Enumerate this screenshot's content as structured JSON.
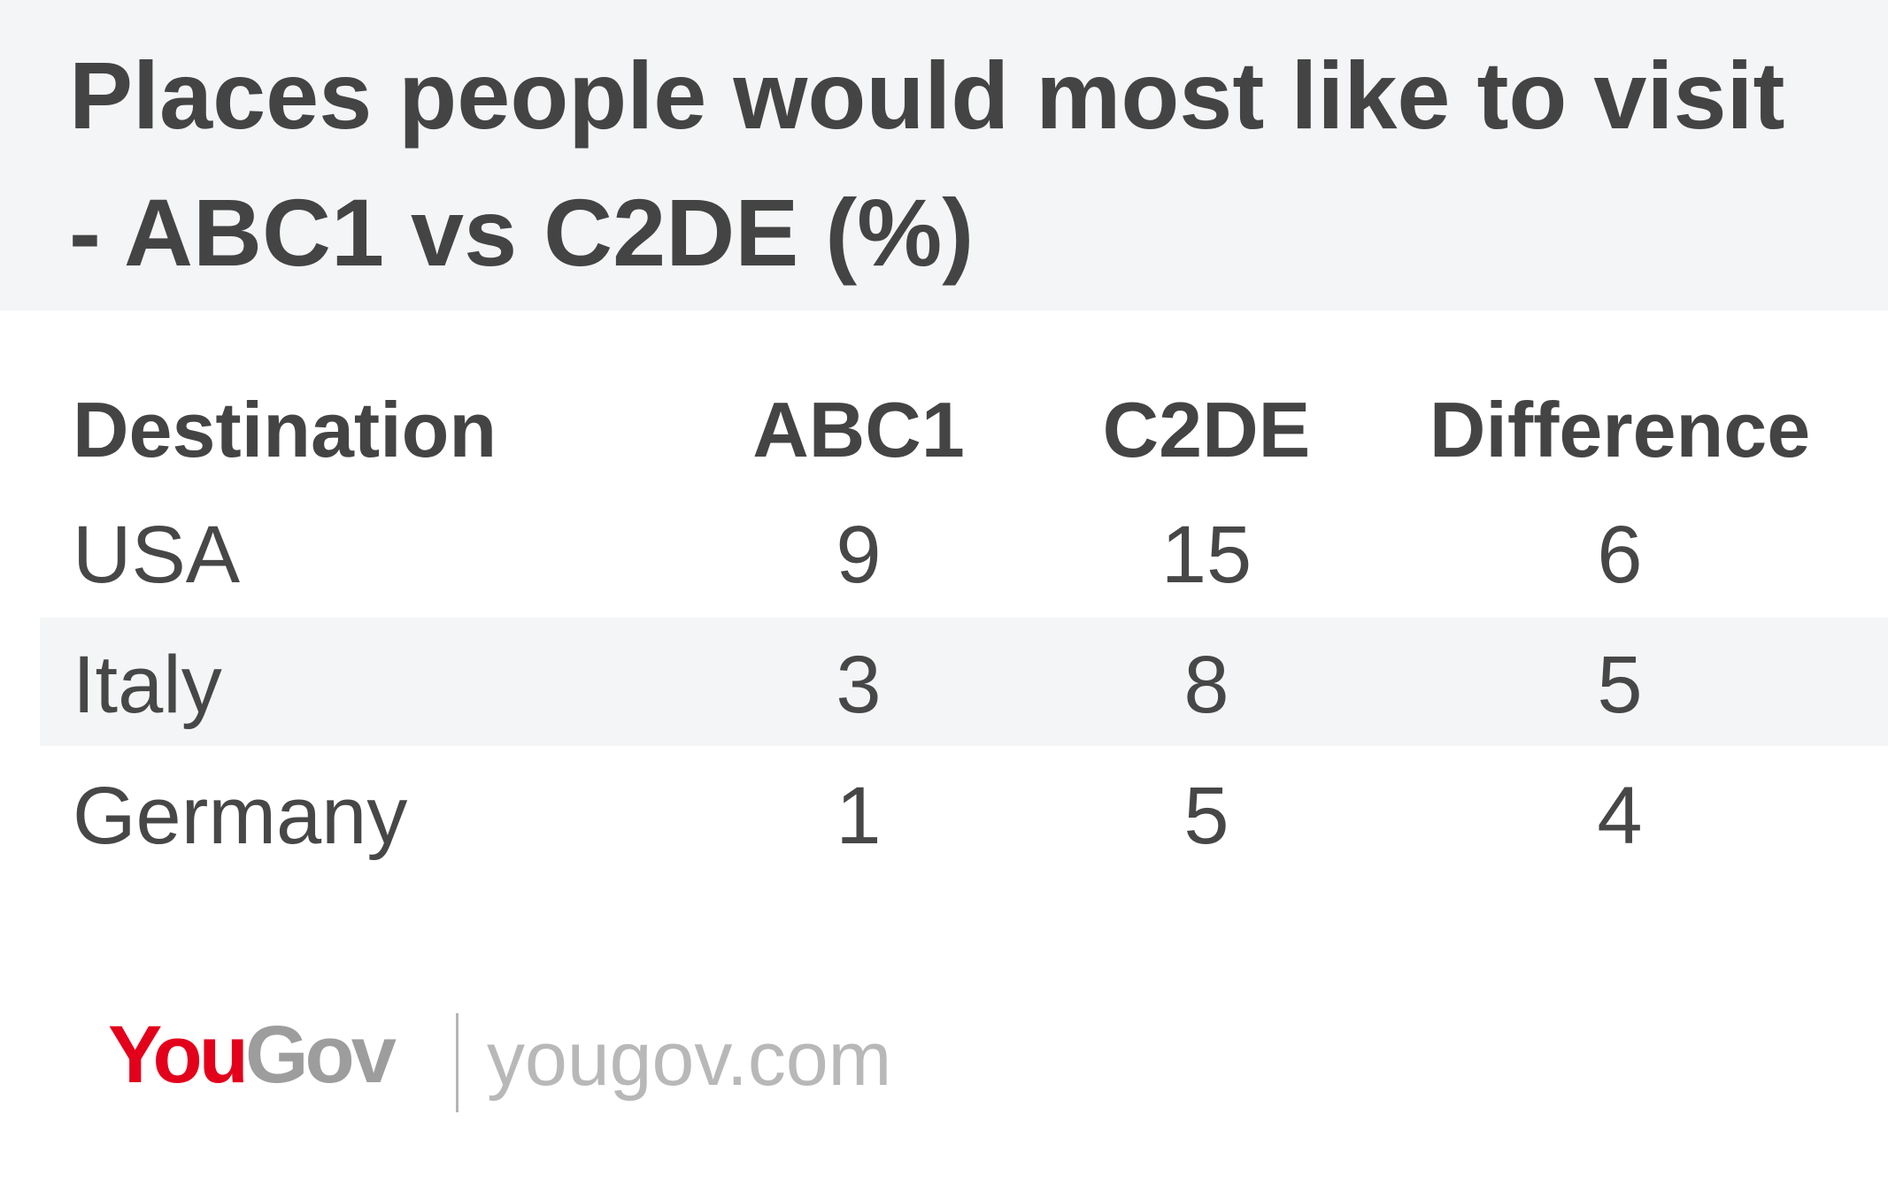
{
  "header": {
    "title": "Places people would most like to visit - ABC1 vs C2DE (%)"
  },
  "table": {
    "columns": [
      "Destination",
      "ABC1",
      "C2DE",
      "Difference"
    ],
    "rows": [
      [
        "USA",
        9,
        15,
        6
      ],
      [
        "Italy",
        3,
        8,
        5
      ],
      [
        "Germany",
        1,
        5,
        4
      ]
    ]
  },
  "footer": {
    "brand_you": "You",
    "brand_gov": "Gov",
    "site": "yougov.com"
  }
}
